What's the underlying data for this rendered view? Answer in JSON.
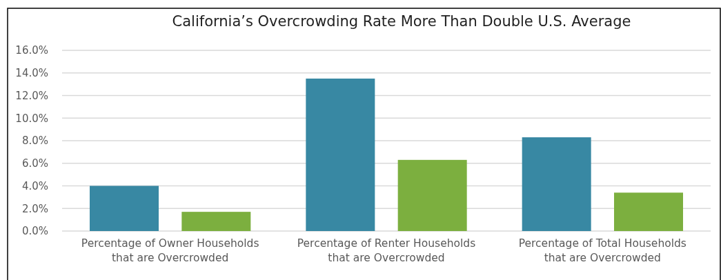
{
  "chart_data": {
    "type": "bar",
    "title": "California’s Overcrowding Rate More Than Double U.S. Average",
    "categories": [
      "Percentage of Owner Households\nthat are Overcrowded",
      "Percentage of Renter Households\nthat are Overcrowded",
      "Percentage of Total Households\nthat are Overcrowded"
    ],
    "series": [
      {
        "color": "#3888a3",
        "values": [
          4.0,
          13.5,
          8.3
        ]
      },
      {
        "color": "#7caf3f",
        "values": [
          1.7,
          6.3,
          3.4
        ]
      }
    ],
    "ylim": [
      0,
      16
    ],
    "yticks": [
      {
        "value": 0,
        "label": "0.0%"
      },
      {
        "value": 2,
        "label": "2.0%"
      },
      {
        "value": 4,
        "label": "4.0%"
      },
      {
        "value": 6,
        "label": "6.0%"
      },
      {
        "value": 8,
        "label": "8.0%"
      },
      {
        "value": 10,
        "label": "10.0%"
      },
      {
        "value": 12,
        "label": "12.0%"
      },
      {
        "value": 14,
        "label": "14.0%"
      },
      {
        "value": 16,
        "label": "16.0%"
      }
    ],
    "grid": "y"
  }
}
